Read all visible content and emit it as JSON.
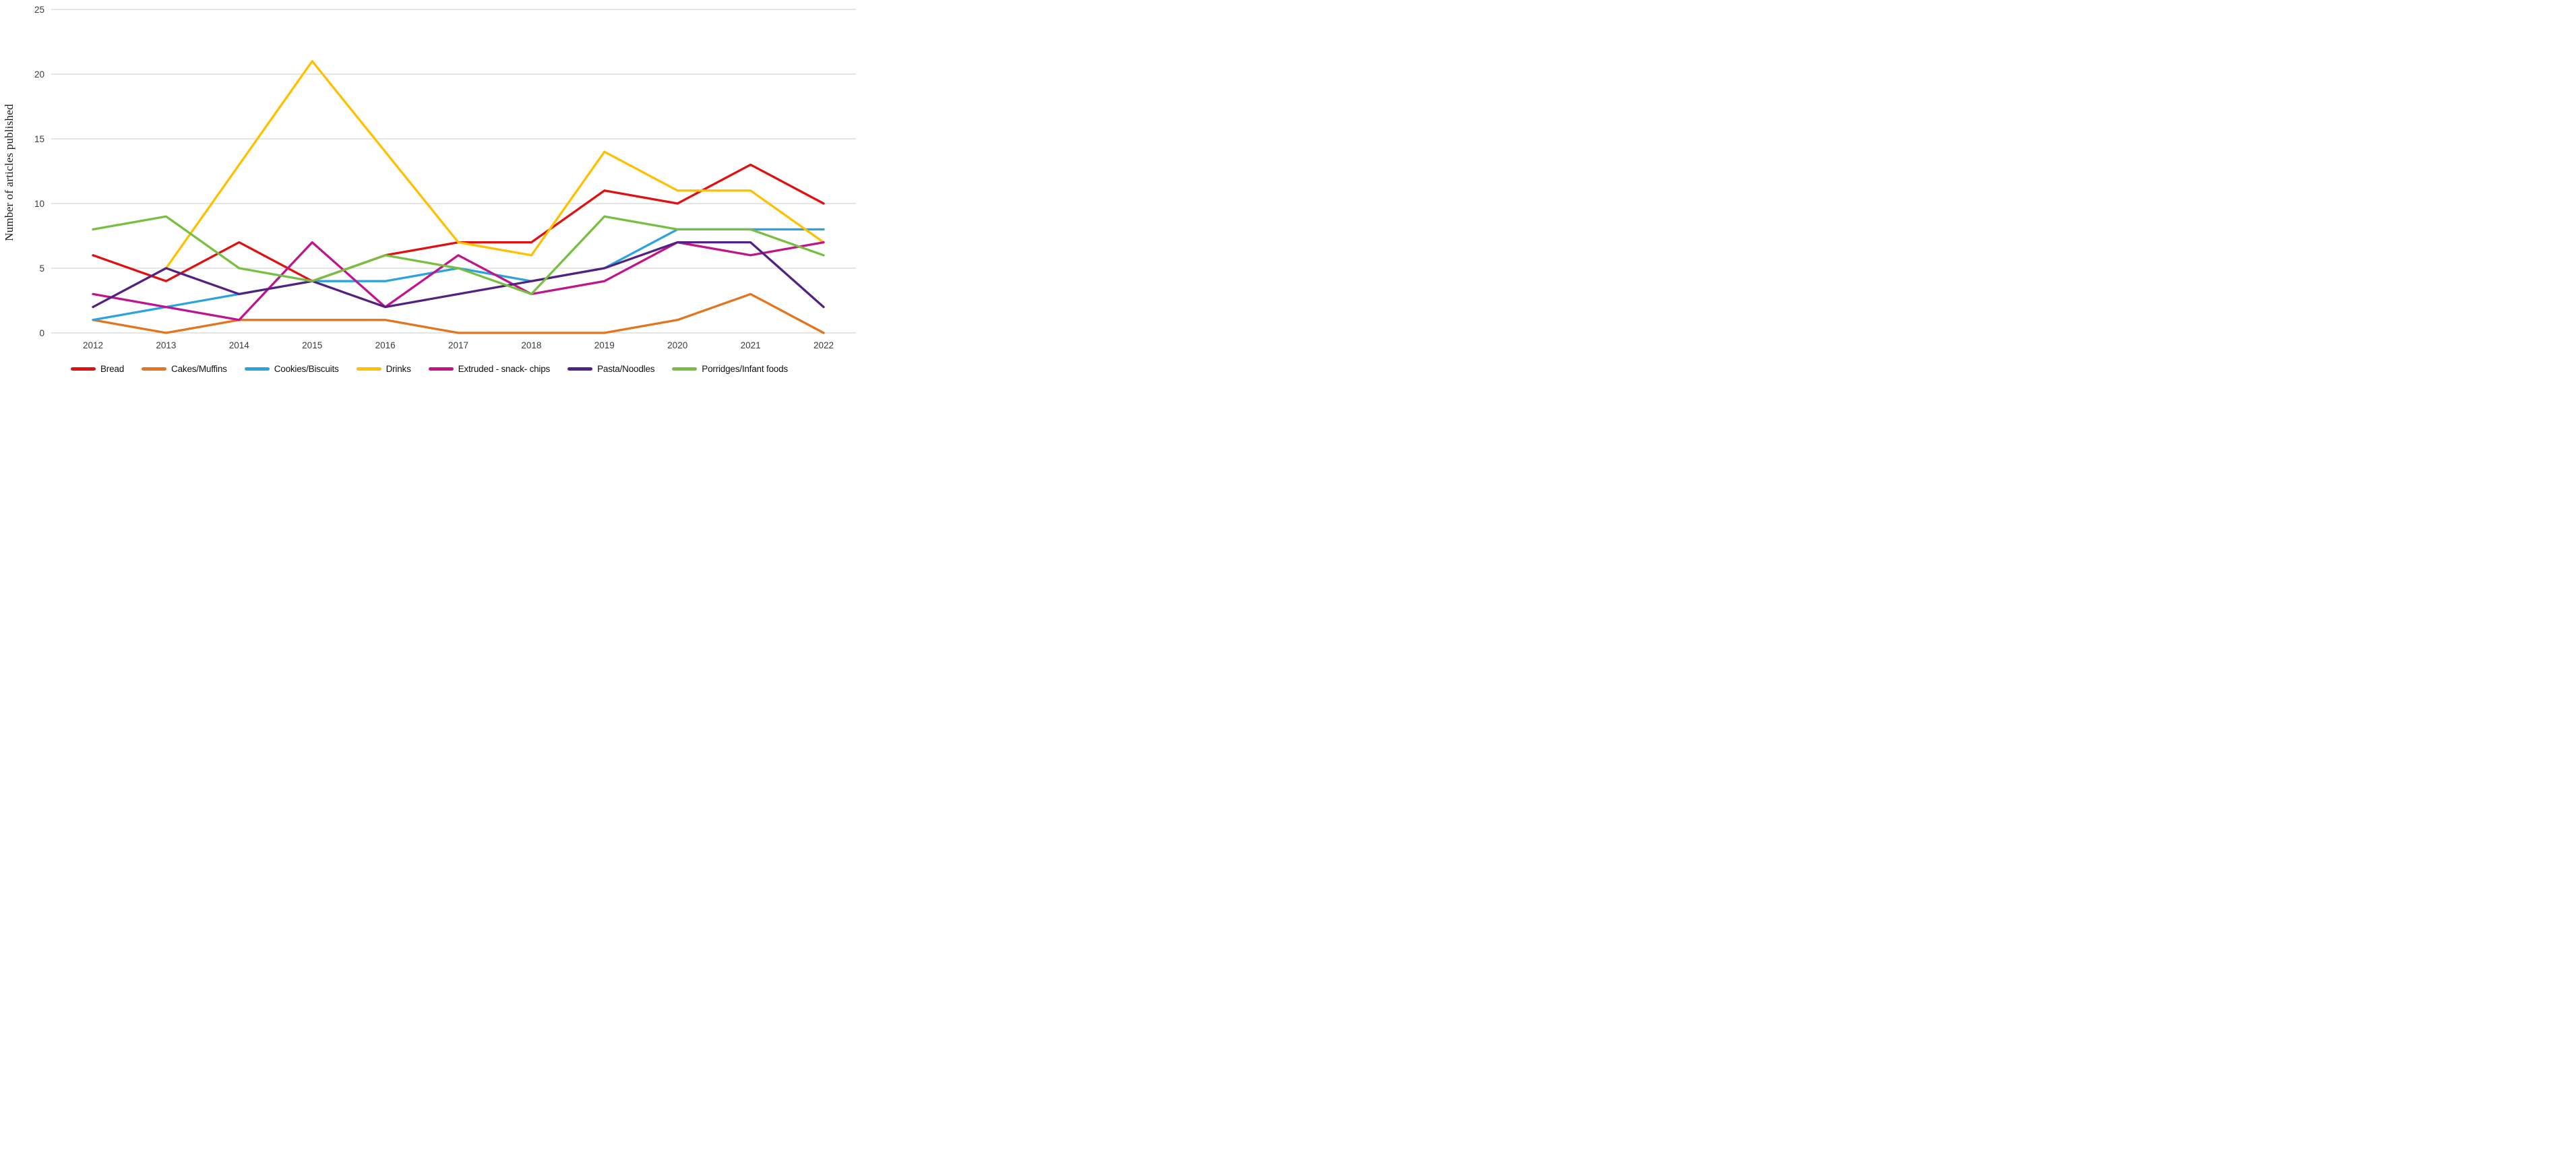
{
  "chart_data": {
    "type": "line",
    "title": "",
    "xlabel": "",
    "ylabel": "Number of articles published",
    "categories": [
      "2012",
      "2013",
      "2014",
      "2015",
      "2016",
      "2017",
      "2018",
      "2019",
      "2020",
      "2021",
      "2022"
    ],
    "ylim": [
      0,
      25
    ],
    "yticks": [
      0,
      5,
      10,
      15,
      20,
      25
    ],
    "grid": true,
    "gridline_color": "#d6d6d6",
    "legend_position": "bottom",
    "series": [
      {
        "name": "Bread",
        "color": "#e01010",
        "values": [
          6,
          4,
          7,
          4,
          6,
          7,
          7,
          11,
          10,
          13,
          10
        ]
      },
      {
        "name": "Cakes/Muffins",
        "color": "#e2751d",
        "values": [
          1,
          0,
          1,
          1,
          1,
          0,
          0,
          0,
          1,
          3,
          0
        ]
      },
      {
        "name": "Cookies/Biscuits",
        "color": "#2ca3dc",
        "values": [
          1,
          2,
          3,
          4,
          4,
          5,
          4,
          5,
          8,
          8,
          8
        ]
      },
      {
        "name": "Drinks",
        "color": "#ffc000",
        "values": [
          null,
          5,
          13,
          21,
          14,
          7,
          6,
          14,
          11,
          11,
          7
        ]
      },
      {
        "name": "Extruded - snack- chips",
        "color": "#c0148c",
        "values": [
          3,
          2,
          1,
          7,
          2,
          6,
          3,
          4,
          7,
          6,
          7
        ]
      },
      {
        "name": "Pasta/Noodles",
        "color": "#53217f",
        "values": [
          2,
          5,
          3,
          4,
          2,
          3,
          4,
          5,
          7,
          7,
          2
        ]
      },
      {
        "name": "Porridges/Infant foods",
        "color": "#77bf41",
        "values": [
          8,
          9,
          5,
          4,
          6,
          5,
          3,
          9,
          8,
          8,
          6
        ]
      }
    ]
  }
}
